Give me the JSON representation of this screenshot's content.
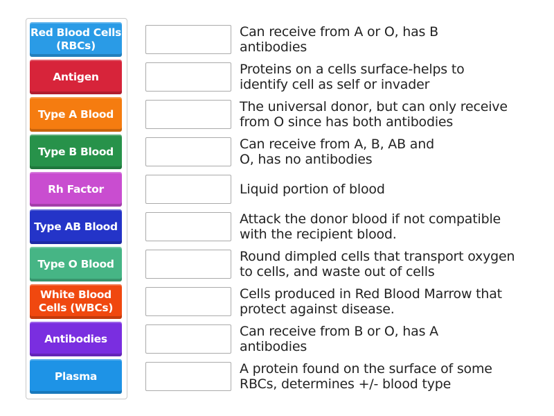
{
  "terms": [
    {
      "label": "Red Blood Cells (RBCs)",
      "color": "#2a9be6"
    },
    {
      "label": "Antigen",
      "color": "#d7243a"
    },
    {
      "label": "Type A Blood",
      "color": "#f57c10"
    },
    {
      "label": "Type B Blood",
      "color": "#27924a"
    },
    {
      "label": "Rh Factor",
      "color": "#c94dd0"
    },
    {
      "label": "Type AB Blood",
      "color": "#2434c8"
    },
    {
      "label": "Type O Blood",
      "color": "#46b585"
    },
    {
      "label": "White Blood Cells (WBCs)",
      "color": "#f0480f"
    },
    {
      "label": "Antibodies",
      "color": "#7a2ee0"
    },
    {
      "label": "Plasma",
      "color": "#1e93e6"
    }
  ],
  "definitions": [
    "Can receive from A or O, has B antibodies",
    "Proteins on a cells surface-helps to identify cell as self or invader",
    "The universal donor, but can only receive from O since has both antibodies",
    "Can receive from A, B, AB and O, has no antibodies",
    "Liquid portion of blood",
    "Attack the donor blood if not compatible with the recipient blood.",
    "Round dimpled cells that transport oxygen to cells, and waste out of cells",
    "Cells produced in Red Blood Marrow that protect against disease.",
    "Can receive from B or O, has A antibodies",
    "A protein found on the surface of some RBCs, determines +/- blood type"
  ]
}
